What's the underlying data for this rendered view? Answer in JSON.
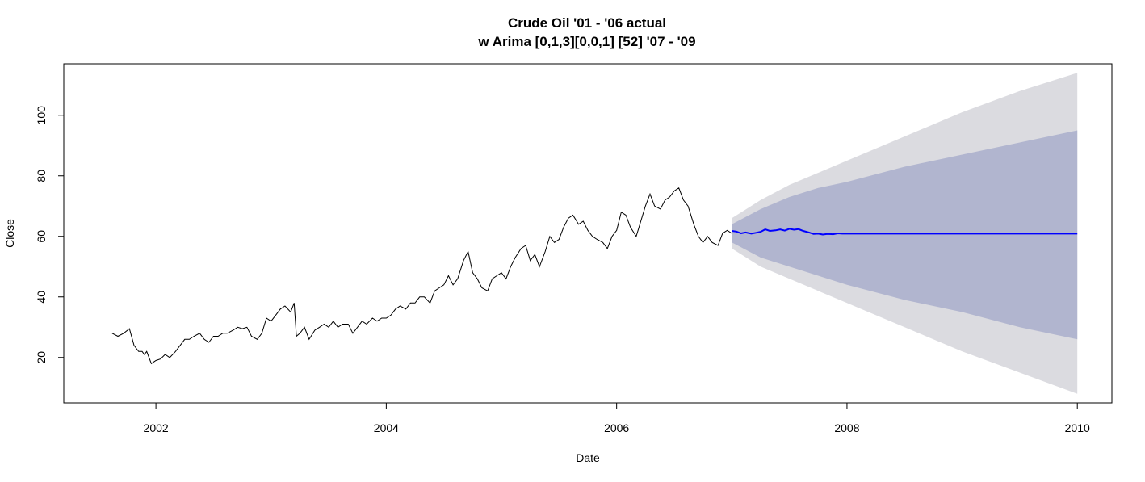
{
  "chart_data": {
    "type": "line",
    "title": "Crude Oil '01 - '06 actual",
    "subtitle": "w Arima [0,1,3][0,0,1] [52] '07 - '09",
    "xlabel": "Date",
    "ylabel": "Close",
    "xlim": [
      2001.2,
      2010.3
    ],
    "ylim": [
      5,
      117
    ],
    "x_ticks": [
      2002,
      2004,
      2006,
      2008,
      2010
    ],
    "y_ticks": [
      20,
      40,
      60,
      80,
      100
    ],
    "grid": false,
    "legend": "none",
    "colors": {
      "actual": "#000000",
      "forecast": "#0000ff",
      "band_80": "#b1b5cf",
      "band_95": "#dbdbe0"
    },
    "series": [
      {
        "role": "actual",
        "x": [
          2001.62,
          2001.67,
          2001.72,
          2001.77,
          2001.81,
          2001.85,
          2001.88,
          2001.9,
          2001.92,
          2001.96,
          2002.0,
          2002.04,
          2002.08,
          2002.12,
          2002.17,
          2002.21,
          2002.25,
          2002.29,
          2002.33,
          2002.38,
          2002.42,
          2002.46,
          2002.5,
          2002.54,
          2002.58,
          2002.62,
          2002.67,
          2002.71,
          2002.75,
          2002.79,
          2002.83,
          2002.88,
          2002.92,
          2002.96,
          2003.0,
          2003.04,
          2003.08,
          2003.12,
          2003.17,
          2003.2,
          2003.22,
          2003.25,
          2003.29,
          2003.33,
          2003.38,
          2003.42,
          2003.46,
          2003.5,
          2003.54,
          2003.58,
          2003.62,
          2003.67,
          2003.71,
          2003.75,
          2003.79,
          2003.83,
          2003.88,
          2003.92,
          2003.96,
          2004.0,
          2004.04,
          2004.08,
          2004.12,
          2004.17,
          2004.21,
          2004.25,
          2004.29,
          2004.33,
          2004.38,
          2004.42,
          2004.46,
          2004.5,
          2004.54,
          2004.58,
          2004.62,
          2004.67,
          2004.71,
          2004.75,
          2004.79,
          2004.83,
          2004.88,
          2004.92,
          2004.96,
          2005.0,
          2005.04,
          2005.08,
          2005.12,
          2005.17,
          2005.21,
          2005.25,
          2005.29,
          2005.33,
          2005.38,
          2005.42,
          2005.46,
          2005.5,
          2005.54,
          2005.58,
          2005.62,
          2005.67,
          2005.71,
          2005.75,
          2005.79,
          2005.83,
          2005.88,
          2005.92,
          2005.96,
          2006.0,
          2006.04,
          2006.08,
          2006.12,
          2006.17,
          2006.21,
          2006.25,
          2006.29,
          2006.33,
          2006.38,
          2006.42,
          2006.46,
          2006.5,
          2006.54,
          2006.58,
          2006.62,
          2006.67,
          2006.71,
          2006.75,
          2006.79,
          2006.83,
          2006.88,
          2006.92,
          2006.96,
          2007.0
        ],
        "y": [
          28,
          27,
          28,
          29.5,
          24,
          22,
          22,
          21,
          22,
          18,
          19,
          19.5,
          21,
          20,
          22,
          24,
          26,
          26,
          27,
          28,
          26,
          25,
          27,
          27,
          28,
          28,
          29,
          30,
          29.5,
          30,
          27,
          26,
          28,
          33,
          32,
          34,
          36,
          37,
          35,
          38,
          27,
          28,
          30,
          26,
          29,
          30,
          31,
          30,
          32,
          30,
          31,
          31,
          28,
          30,
          32,
          31,
          33,
          32,
          33,
          33,
          34,
          36,
          37,
          36,
          38,
          38,
          40,
          40,
          38,
          42,
          43,
          44,
          47,
          44,
          46,
          52,
          55,
          48,
          46,
          43,
          42,
          46,
          47,
          48,
          46,
          50,
          53,
          56,
          57,
          52,
          54,
          50,
          55,
          60,
          58,
          59,
          63,
          66,
          67,
          64,
          65,
          62,
          60,
          59,
          58,
          56,
          60,
          62,
          68,
          67,
          63,
          60,
          65,
          70,
          74,
          70,
          69,
          72,
          73,
          75,
          76,
          72,
          70,
          64,
          60,
          58,
          60,
          58,
          57,
          61,
          62,
          61
        ]
      },
      {
        "role": "forecast",
        "x": [
          2007.0,
          2007.04,
          2007.08,
          2007.12,
          2007.17,
          2007.21,
          2007.25,
          2007.29,
          2007.33,
          2007.38,
          2007.42,
          2007.46,
          2007.5,
          2007.54,
          2007.58,
          2007.62,
          2007.67,
          2007.71,
          2007.75,
          2007.79,
          2007.83,
          2007.88,
          2007.92,
          2007.96,
          2008.0,
          2010.0
        ],
        "y": [
          61.8,
          61.6,
          61.0,
          61.3,
          60.9,
          61.2,
          61.5,
          62.3,
          61.8,
          62.0,
          62.3,
          61.9,
          62.5,
          62.2,
          62.4,
          61.8,
          61.3,
          60.8,
          60.9,
          60.6,
          60.8,
          60.7,
          61.0,
          60.9,
          60.9,
          60.9
        ]
      }
    ],
    "intervals": {
      "x": [
        2007.0,
        2007.25,
        2007.5,
        2007.75,
        2008.0,
        2008.5,
        2009.0,
        2009.5,
        2010.0
      ],
      "lo80": [
        58,
        53,
        50,
        47,
        44,
        39,
        35,
        30,
        26
      ],
      "hi80": [
        64,
        69,
        73,
        76,
        78,
        83,
        87,
        91,
        95
      ],
      "lo95": [
        56,
        50,
        46,
        42,
        38,
        30,
        22,
        15,
        8
      ],
      "hi95": [
        66,
        72,
        77,
        81,
        85,
        93,
        101,
        108,
        114
      ]
    }
  }
}
